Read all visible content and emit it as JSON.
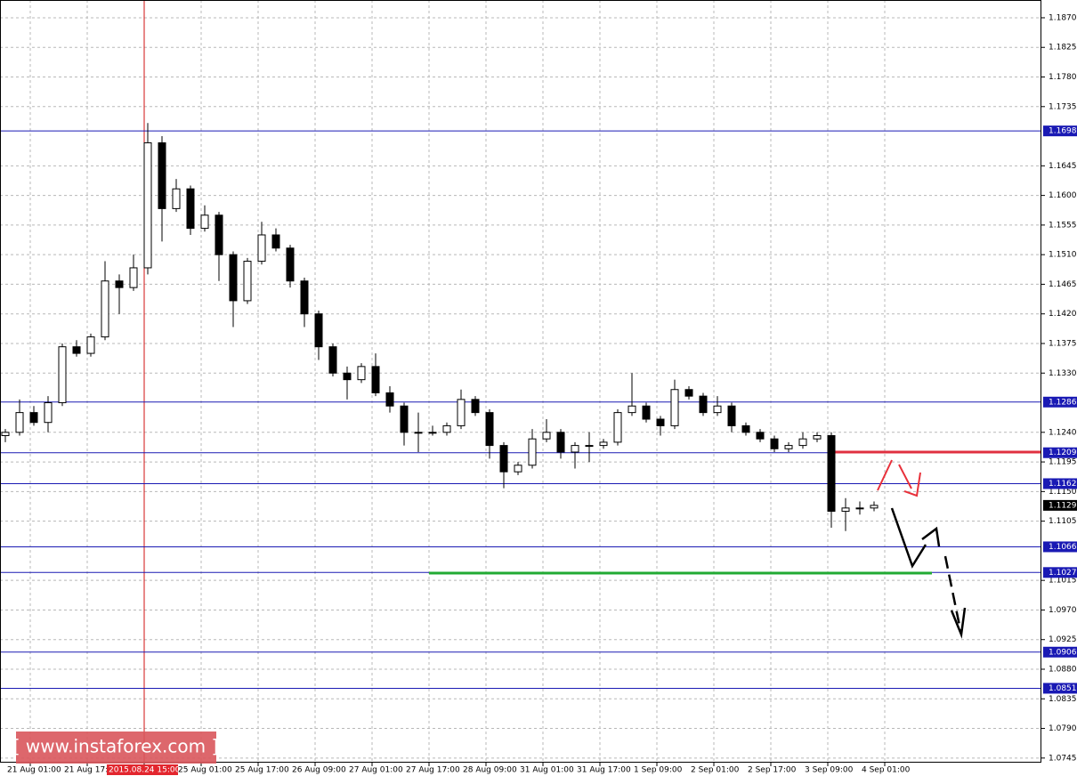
{
  "chart_data": {
    "type": "candlestick",
    "categories": [
      "21 Aug 01:00",
      null,
      null,
      null,
      "21 Aug 17:00",
      null,
      null,
      null,
      "2015.08.24 15:00",
      null,
      null,
      null,
      "25 Aug 01:00",
      null,
      null,
      null,
      "25 Aug 17:00",
      null,
      null,
      null,
      "26 Aug 09:00",
      null,
      null,
      null,
      "27 Aug 01:00",
      null,
      null,
      null,
      "27 Aug 17:00",
      null,
      null,
      null,
      "28 Aug 09:00",
      null,
      null,
      null,
      "31 Aug 01:00",
      null,
      null,
      null,
      "31 Aug 17:00",
      null,
      null,
      null,
      "1 Sep 09:00",
      null,
      null,
      null,
      "2 Sep 01:00",
      null,
      null,
      null,
      "2 Sep 17:00",
      null,
      null,
      null,
      "3 Sep 09:00",
      null,
      null,
      null,
      "4 Sep 01:00",
      null
    ],
    "open": [
      1.1235,
      1.124,
      1.127,
      1.1255,
      1.1285,
      1.137,
      1.136,
      1.1385,
      1.147,
      1.146,
      1.149,
      1.168,
      1.158,
      1.161,
      1.155,
      1.157,
      1.151,
      1.144,
      1.15,
      1.154,
      1.152,
      1.147,
      1.142,
      1.137,
      1.133,
      1.132,
      1.134,
      1.13,
      1.128,
      1.124,
      1.124,
      1.124,
      1.125,
      1.129,
      1.127,
      1.122,
      1.118,
      1.119,
      1.123,
      1.124,
      1.121,
      1.122,
      1.122,
      1.1225,
      1.127,
      1.128,
      1.126,
      1.125,
      1.1305,
      1.1295,
      1.127,
      1.128,
      1.125,
      1.124,
      1.123,
      1.1215,
      1.122,
      1.123,
      1.1235,
      1.112,
      1.1125,
      1.1125
    ],
    "high": [
      1.1245,
      1.129,
      1.128,
      1.1295,
      1.1375,
      1.138,
      1.139,
      1.15,
      1.148,
      1.151,
      1.171,
      1.169,
      1.1625,
      1.1615,
      1.1585,
      1.1575,
      1.1515,
      1.1505,
      1.156,
      1.155,
      1.1525,
      1.1475,
      1.1425,
      1.1375,
      1.134,
      1.1345,
      1.136,
      1.131,
      1.1285,
      1.127,
      1.125,
      1.1255,
      1.1305,
      1.1295,
      1.1275,
      1.1225,
      1.1195,
      1.1245,
      1.126,
      1.1245,
      1.1225,
      1.124,
      1.123,
      1.1275,
      1.133,
      1.1285,
      1.1265,
      1.132,
      1.131,
      1.13,
      1.1295,
      1.1285,
      1.1255,
      1.1245,
      1.1235,
      1.1225,
      1.124,
      1.124,
      1.124,
      1.114,
      1.1135,
      1.1135
    ],
    "low": [
      1.1225,
      1.1235,
      1.125,
      1.124,
      1.128,
      1.1355,
      1.1355,
      1.138,
      1.142,
      1.1455,
      1.148,
      1.153,
      1.1575,
      1.154,
      1.1545,
      1.147,
      1.14,
      1.1435,
      1.1495,
      1.1515,
      1.146,
      1.14,
      1.135,
      1.1325,
      1.129,
      1.1315,
      1.1295,
      1.127,
      1.122,
      1.121,
      1.1235,
      1.1235,
      1.1245,
      1.1265,
      1.12,
      1.1155,
      1.1175,
      1.1185,
      1.1225,
      1.12,
      1.1185,
      1.1195,
      1.1215,
      1.122,
      1.1265,
      1.1255,
      1.1235,
      1.1245,
      1.129,
      1.1265,
      1.1265,
      1.124,
      1.1235,
      1.1225,
      1.121,
      1.121,
      1.1215,
      1.1225,
      1.1095,
      1.109,
      1.1115,
      1.112
    ],
    "close": [
      1.124,
      1.127,
      1.1255,
      1.1285,
      1.137,
      1.136,
      1.1385,
      1.147,
      1.146,
      1.149,
      1.168,
      1.158,
      1.161,
      1.155,
      1.157,
      1.151,
      1.144,
      1.15,
      1.154,
      1.152,
      1.147,
      1.142,
      1.137,
      1.133,
      1.132,
      1.134,
      1.13,
      1.128,
      1.124,
      1.124,
      1.124,
      1.125,
      1.129,
      1.127,
      1.122,
      1.118,
      1.119,
      1.123,
      1.124,
      1.121,
      1.122,
      1.122,
      1.1225,
      1.127,
      1.128,
      1.126,
      1.125,
      1.1305,
      1.1295,
      1.127,
      1.128,
      1.125,
      1.124,
      1.123,
      1.1215,
      1.122,
      1.123,
      1.1235,
      1.112,
      1.1125,
      1.1125,
      1.1129
    ],
    "ylim": [
      1.0738,
      1.1897
    ],
    "yticks": [
      {
        "value": 1.187,
        "label": "1.1870"
      },
      1.1825,
      {
        "value": 1.178,
        "label": "1.1780"
      },
      1.1735,
      1.1645,
      {
        "value": 1.16,
        "label": "1.1600"
      },
      1.1555,
      {
        "value": 1.151,
        "label": "1.1510"
      },
      1.1465,
      {
        "value": 1.142,
        "label": "1.1420"
      },
      1.1375,
      {
        "value": 1.133,
        "label": "1.1330"
      },
      {
        "value": 1.124,
        "label": "1.1240"
      },
      1.1195,
      {
        "value": 1.115,
        "label": "1.1150"
      },
      1.1105,
      1.1015,
      {
        "value": 1.097,
        "label": "1.0970"
      },
      1.0925,
      {
        "value": 1.088,
        "label": "1.0880"
      },
      1.0835,
      {
        "value": 1.079,
        "label": "1.0790"
      },
      1.0745
    ],
    "grid": true,
    "levels": [
      1.1698,
      1.1286,
      1.1209,
      1.1162,
      1.1066,
      1.1027,
      1.0906,
      1.0851
    ],
    "level_color": "#1a1ab4",
    "current_price": 1.1129,
    "cursor_index": 8,
    "cursor_color": "#e3262e",
    "watermark": "[ www.instaforex.com ]"
  }
}
